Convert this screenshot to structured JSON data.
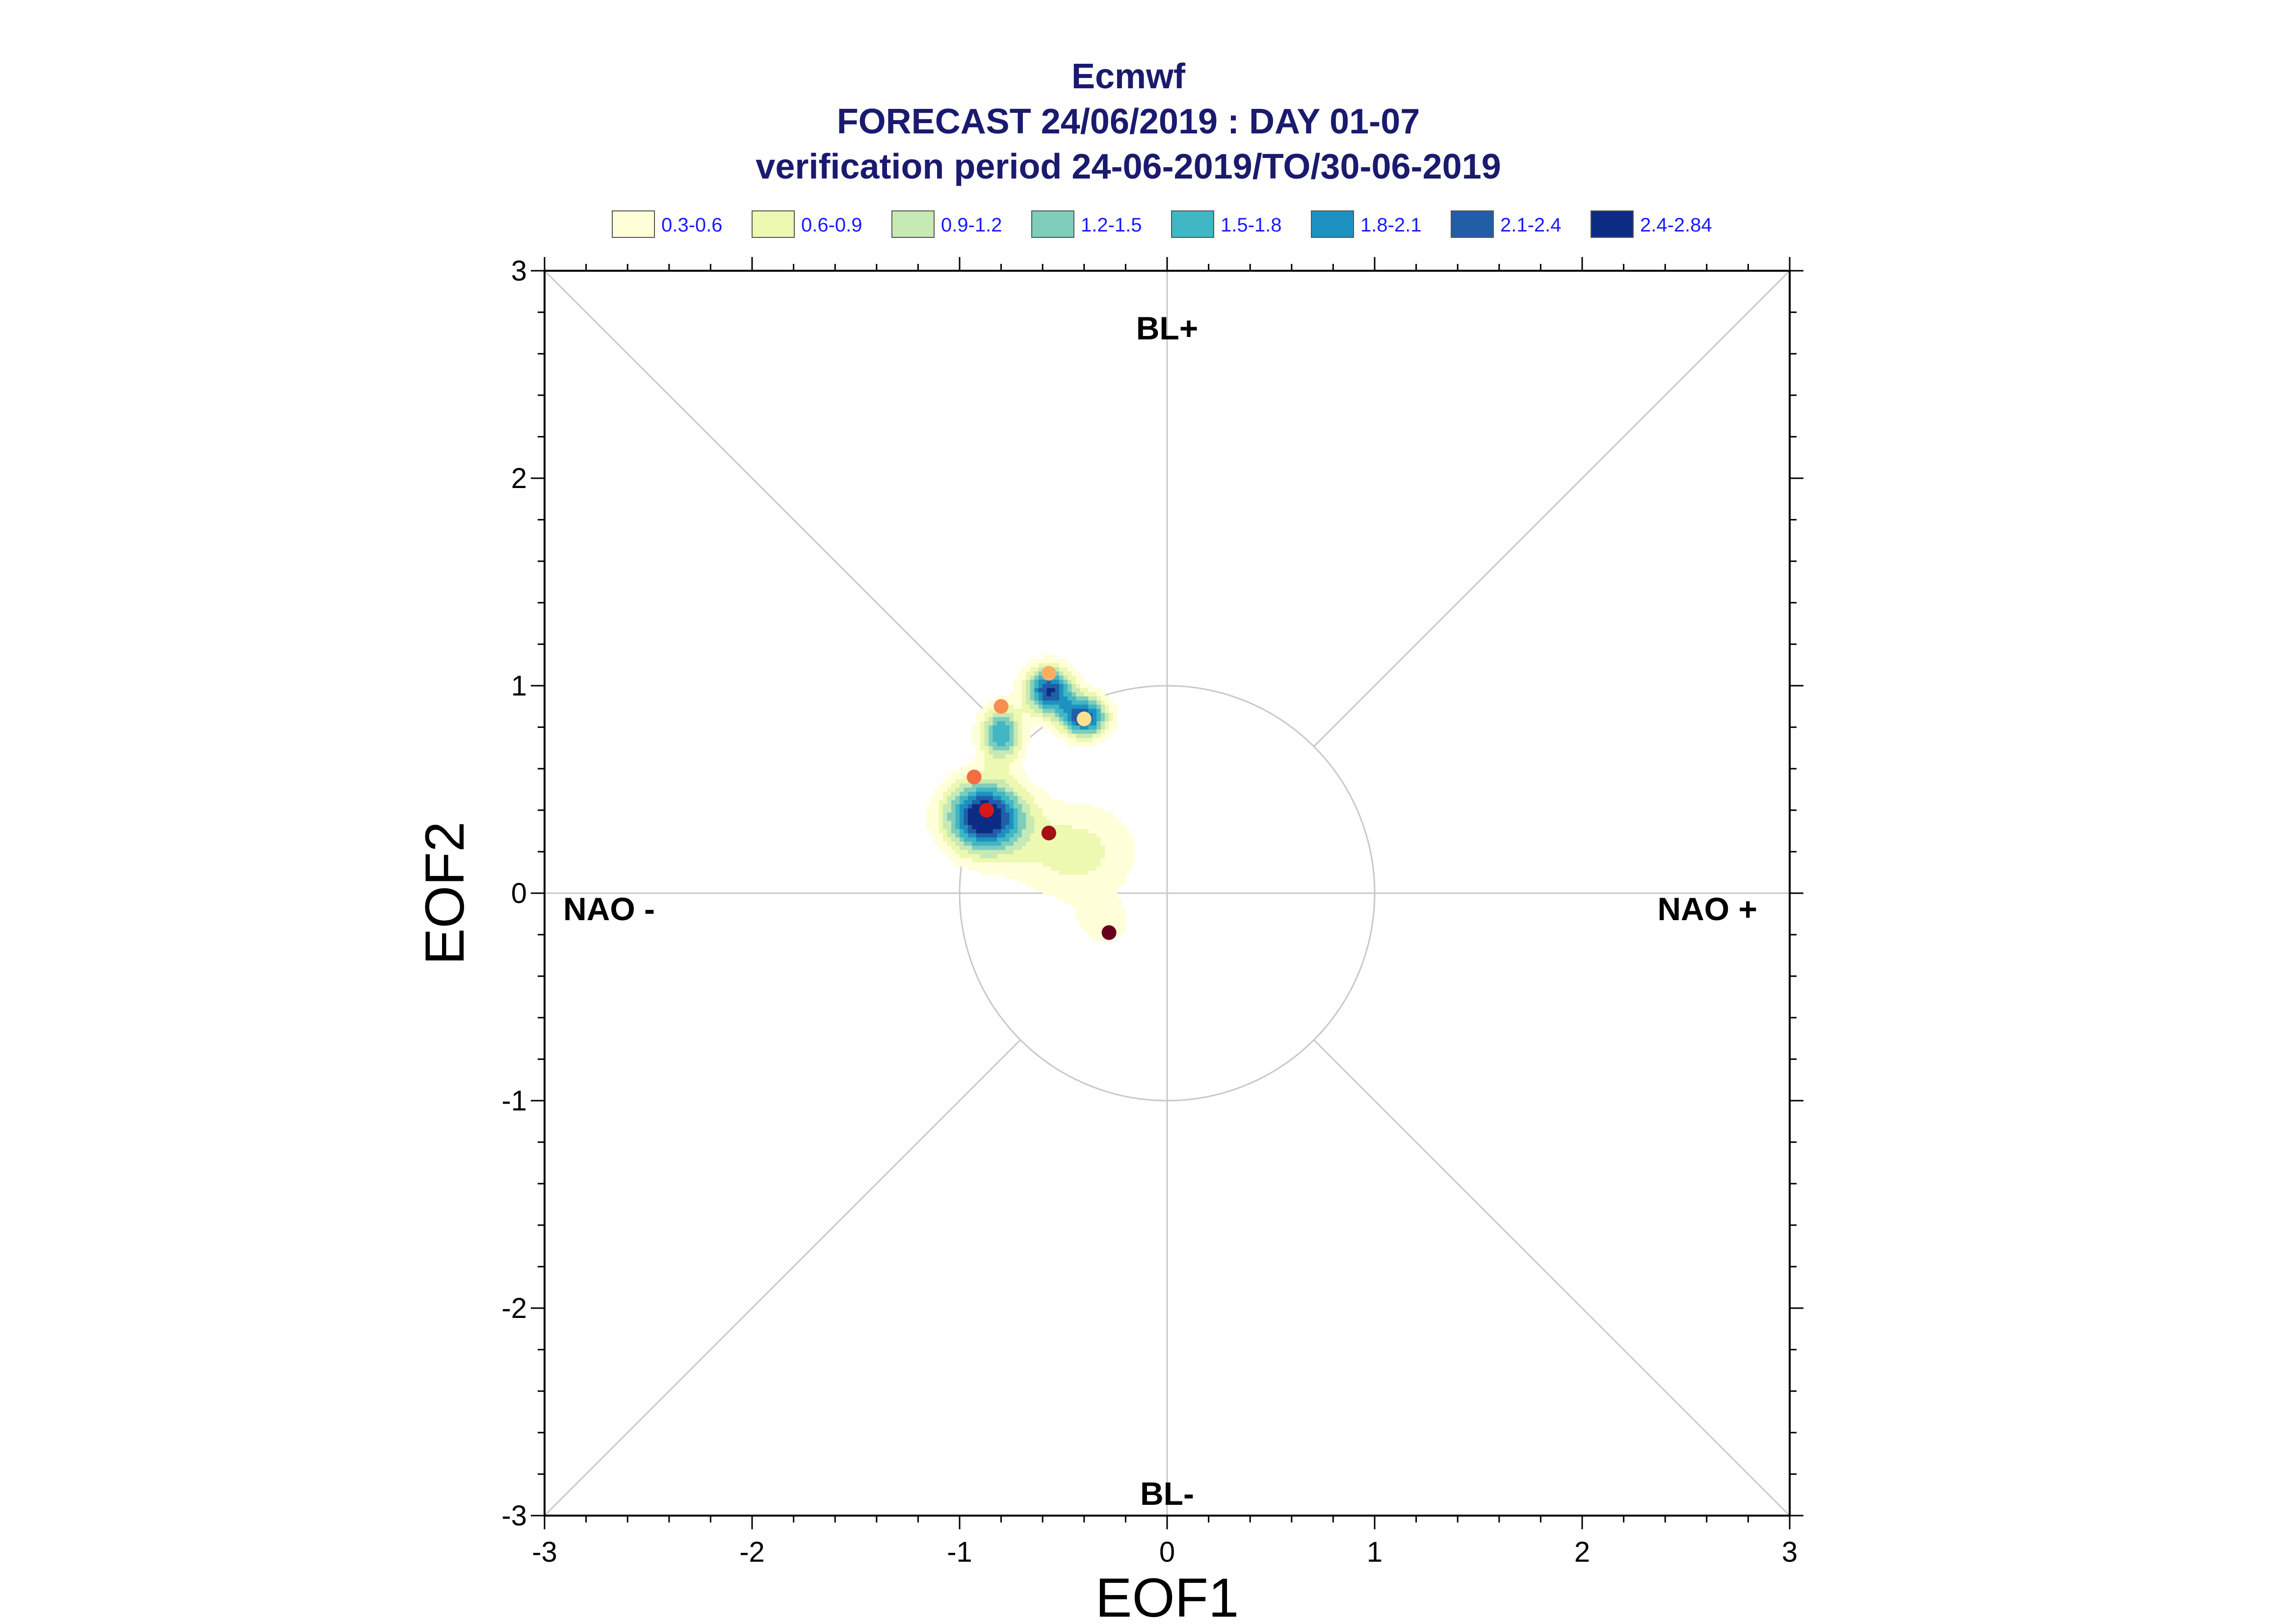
{
  "chart_data": {
    "type": "scatter",
    "title_lines": [
      "Ecmwf",
      "FORECAST 24/06/2019 : DAY 01-07",
      "verification period 24-06-2019/TO/30-06-2019"
    ],
    "xlabel": "EOF1",
    "ylabel": "EOF2",
    "xlim": [
      -3,
      3
    ],
    "ylim": [
      -3,
      3
    ],
    "xticks": [
      "-3",
      "-2",
      "-1",
      "0",
      "1",
      "2",
      "3"
    ],
    "yticks": [
      "-3",
      "-2",
      "-1",
      "0",
      "1",
      "2",
      "3"
    ],
    "reference_circle_radius": 1,
    "region_labels": {
      "top": "BL+",
      "bottom": "BL-",
      "left": "NAO -",
      "right": "NAO +"
    },
    "legend": [
      {
        "label": "0.3-0.6",
        "color": "#ffffd9"
      },
      {
        "label": "0.6-0.9",
        "color": "#edf8b1"
      },
      {
        "label": "0.9-1.2",
        "color": "#c7e9b4"
      },
      {
        "label": "1.2-1.5",
        "color": "#7fcdbb"
      },
      {
        "label": "1.5-1.8",
        "color": "#41b6c4"
      },
      {
        "label": "1.8-2.1",
        "color": "#1d91c0"
      },
      {
        "label": "2.1-2.4",
        "color": "#225ea8"
      },
      {
        "label": "2.4-2.84",
        "color": "#0c2c84"
      }
    ],
    "density_clusters": [
      {
        "x": -0.88,
        "y": 0.37,
        "sx": 0.13,
        "sy": 0.12,
        "peak": 2.84
      },
      {
        "x": -0.8,
        "y": 0.77,
        "sx": 0.07,
        "sy": 0.09,
        "peak": 1.8
      },
      {
        "x": -0.57,
        "y": 0.98,
        "sx": 0.08,
        "sy": 0.08,
        "peak": 2.4
      },
      {
        "x": -0.4,
        "y": 0.85,
        "sx": 0.08,
        "sy": 0.07,
        "peak": 2.4
      },
      {
        "x": -0.45,
        "y": 0.2,
        "sx": 0.22,
        "sy": 0.17,
        "peak": 0.75
      },
      {
        "x": -0.3,
        "y": -0.15,
        "sx": 0.1,
        "sy": 0.08,
        "peak": 0.45
      }
    ],
    "points": [
      {
        "x": -0.57,
        "y": 1.06,
        "color": "#fdae61"
      },
      {
        "x": -0.4,
        "y": 0.84,
        "color": "#fee090"
      },
      {
        "x": -0.8,
        "y": 0.9,
        "color": "#f98e52"
      },
      {
        "x": -0.93,
        "y": 0.56,
        "color": "#f46d43"
      },
      {
        "x": -0.87,
        "y": 0.4,
        "color": "#d7191c"
      },
      {
        "x": -0.57,
        "y": 0.29,
        "color": "#a50f15"
      },
      {
        "x": -0.28,
        "y": -0.19,
        "color": "#67001f"
      }
    ]
  }
}
